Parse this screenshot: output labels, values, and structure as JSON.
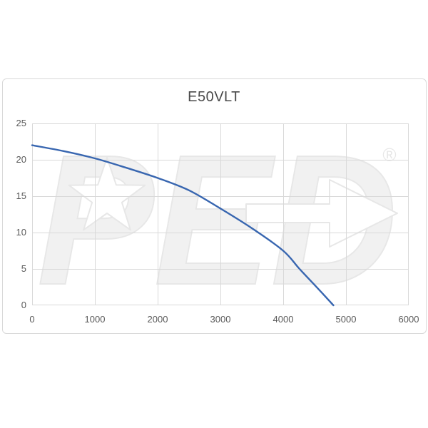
{
  "window": {
    "background": "#FFFFFF"
  },
  "chart": {
    "title": "E50VLT",
    "title_color": "#4A4A4A",
    "text_color": "#595959",
    "border_color": "#D9D9D9",
    "grid_color": "#D9D9D9",
    "line_color": "#3866B0",
    "watermark": {
      "text": "PED",
      "registered_symbol": "®",
      "fill_color": "#F1F1F1",
      "outline_color": "#E7E7E7",
      "knockout_color": "#FFFFFF"
    }
  },
  "chart_data": {
    "type": "line",
    "title": "E50VLT",
    "xlabel": "",
    "ylabel": "",
    "xlim": [
      0,
      6000
    ],
    "ylim": [
      0,
      25
    ],
    "x_ticks": [
      0,
      1000,
      2000,
      3000,
      4000,
      5000,
      6000
    ],
    "y_ticks": [
      0,
      5,
      10,
      15,
      20,
      25
    ],
    "grid": true,
    "legend": false,
    "series": [
      {
        "name": "E50VLT",
        "x": [
          0,
          500,
          1000,
          1500,
          2000,
          2500,
          3000,
          3500,
          4000,
          4250,
          4500,
          4800
        ],
        "y": [
          22,
          21.2,
          20.2,
          18.9,
          17.5,
          15.8,
          13.3,
          10.6,
          7.5,
          5.1,
          2.8,
          0
        ]
      }
    ]
  }
}
